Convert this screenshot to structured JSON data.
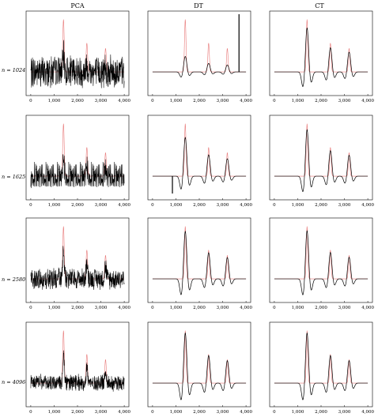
{
  "columns": [
    "PCA",
    "DT",
    "CT"
  ],
  "rows": [
    "n = 1024",
    "n = 1625",
    "n = 2580",
    "n = 4096"
  ],
  "colors": {
    "reference": "#e87a7a",
    "estimate": "#000000",
    "axis": "#000000"
  },
  "chart_data": {
    "type": "line",
    "layout": "4x3 grid of line plots",
    "x_ticks": [
      "0",
      "1,000",
      "2,000",
      "3,000",
      "4,000"
    ],
    "xlim": [
      -200,
      4200
    ],
    "x_tick_values": [
      0,
      1000,
      2000,
      3000,
      4000
    ],
    "grid": false,
    "reference_signal": {
      "name": "reference",
      "color": "#e87a7a",
      "peaks": [
        {
          "x": 1400,
          "amplitude": 1.0
        },
        {
          "x": 2400,
          "amplitude": 0.55
        },
        {
          "x": 3200,
          "amplitude": 0.45
        }
      ]
    },
    "panels": [
      {
        "row": 0,
        "col": 0,
        "method": "PCA",
        "n": 1024,
        "estimate": "noisy",
        "noise": 0.35
      },
      {
        "row": 0,
        "col": 1,
        "method": "DT",
        "n": 1024,
        "estimate": "smooth",
        "scale": 0.3,
        "spike_x": 3700
      },
      {
        "row": 0,
        "col": 2,
        "method": "CT",
        "n": 1024,
        "estimate": "smooth",
        "scale": 0.85
      },
      {
        "row": 1,
        "col": 0,
        "method": "PCA",
        "n": 1625,
        "estimate": "noisy",
        "noise": 0.3
      },
      {
        "row": 1,
        "col": 1,
        "method": "DT",
        "n": 1625,
        "estimate": "smooth",
        "scale": 0.75,
        "spike_x": 850
      },
      {
        "row": 1,
        "col": 2,
        "method": "CT",
        "n": 1625,
        "estimate": "smooth",
        "scale": 0.9
      },
      {
        "row": 2,
        "col": 0,
        "method": "PCA",
        "n": 2580,
        "estimate": "noisy",
        "noise": 0.22
      },
      {
        "row": 2,
        "col": 1,
        "method": "DT",
        "n": 2580,
        "estimate": "smooth",
        "scale": 0.92
      },
      {
        "row": 2,
        "col": 2,
        "method": "CT",
        "n": 2580,
        "estimate": "smooth",
        "scale": 0.93
      },
      {
        "row": 3,
        "col": 0,
        "method": "PCA",
        "n": 4096,
        "estimate": "noisy",
        "noise": 0.18
      },
      {
        "row": 3,
        "col": 1,
        "method": "DT",
        "n": 4096,
        "estimate": "smooth",
        "scale": 0.97
      },
      {
        "row": 3,
        "col": 2,
        "method": "CT",
        "n": 4096,
        "estimate": "smooth",
        "scale": 0.97
      }
    ]
  }
}
